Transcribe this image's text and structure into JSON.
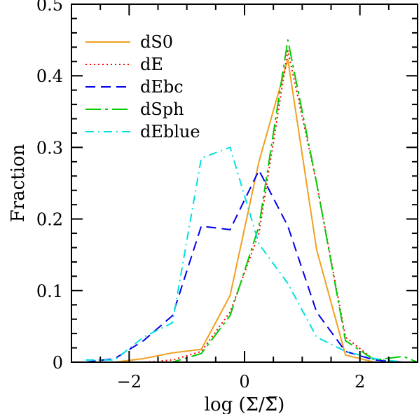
{
  "chart_data": {
    "type": "line",
    "title": "",
    "xlabel": "log (Σ/Σ̅)",
    "ylabel": "Fraction",
    "xlim": [
      -3.0,
      3.0
    ],
    "ylim": [
      0,
      0.5
    ],
    "xticks": [
      -2,
      0,
      2
    ],
    "yticks": [
      0,
      0.1,
      0.2,
      0.3,
      0.4,
      0.5
    ],
    "xtick_labels": [
      "−2",
      "0",
      "2"
    ],
    "ytick_labels": [
      "0",
      "0.1",
      "0.2",
      "0.3",
      "0.4",
      "0.5"
    ],
    "legend_position": "top-left",
    "grid": false,
    "series": [
      {
        "name": "dS0",
        "color": "#f0a020",
        "dash": "solid",
        "x": [
          -2.75,
          -2.25,
          -1.75,
          -1.25,
          -0.75,
          -0.25,
          0.25,
          0.75,
          1.25,
          1.75,
          2.25,
          2.75
        ],
        "y": [
          0.0,
          0.0,
          0.005,
          0.013,
          0.018,
          0.093,
          0.28,
          0.423,
          0.157,
          0.01,
          0.0,
          0.0
        ]
      },
      {
        "name": "dE",
        "color": "#ff0000",
        "dash": "dotted",
        "x": [
          -2.75,
          -2.25,
          -1.75,
          -1.25,
          -0.75,
          -0.25,
          0.25,
          0.75,
          1.25,
          1.75,
          2.25,
          2.75
        ],
        "y": [
          0.0,
          0.0,
          0.0,
          0.003,
          0.015,
          0.07,
          0.18,
          0.435,
          0.25,
          0.035,
          0.003,
          0.0
        ]
      },
      {
        "name": "dEbc",
        "color": "#0000ee",
        "dash": "dashed",
        "x": [
          -2.75,
          -2.25,
          -1.75,
          -1.25,
          -0.75,
          -0.25,
          0.25,
          0.75,
          1.25,
          1.75,
          2.25,
          2.75
        ],
        "y": [
          0.0,
          0.005,
          0.03,
          0.065,
          0.19,
          0.185,
          0.268,
          0.19,
          0.07,
          0.015,
          0.003,
          0.0
        ]
      },
      {
        "name": "dSph",
        "color": "#00cc00",
        "dash": "longdash",
        "x": [
          -2.75,
          -2.25,
          -1.75,
          -1.25,
          -0.75,
          -0.25,
          0.25,
          0.75,
          1.25,
          1.75,
          2.25,
          2.75,
          3.0
        ],
        "y": [
          0.0,
          0.0,
          0.0,
          0.0,
          0.012,
          0.065,
          0.19,
          0.45,
          0.25,
          0.03,
          0.003,
          0.008,
          0.0
        ]
      },
      {
        "name": "dEblue",
        "color": "#00e0e0",
        "dash": "dashdot",
        "x": [
          -2.75,
          -2.25,
          -1.75,
          -1.25,
          -0.75,
          -0.25,
          0.25,
          0.75,
          1.25,
          1.75,
          2.25,
          2.75
        ],
        "y": [
          0.003,
          0.003,
          0.035,
          0.055,
          0.285,
          0.3,
          0.165,
          0.11,
          0.035,
          0.015,
          0.005,
          0.0
        ]
      }
    ]
  }
}
